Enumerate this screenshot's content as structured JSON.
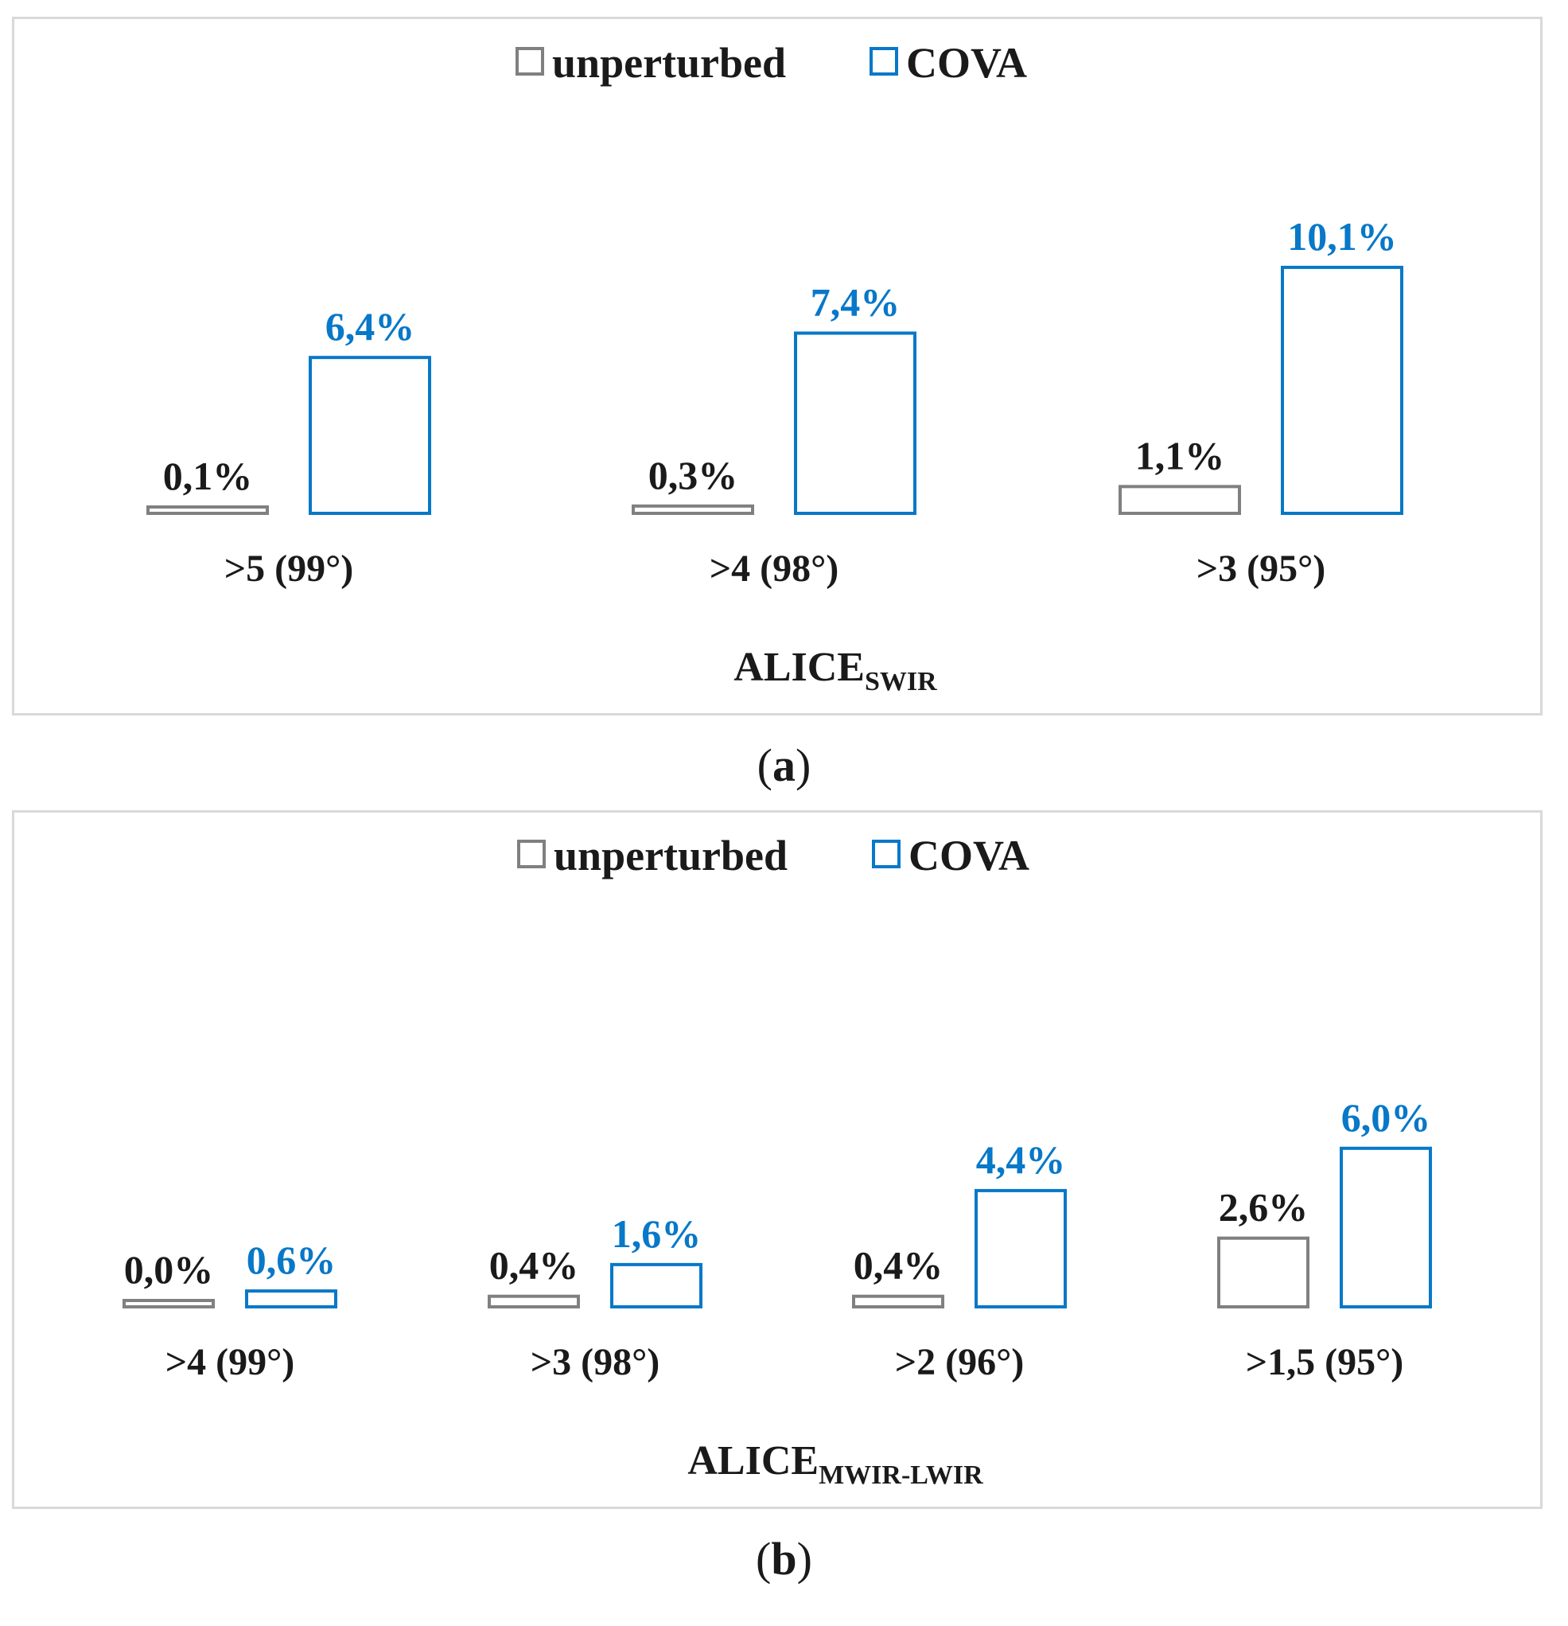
{
  "colors": {
    "unperturbed": "#808080",
    "cova": "#0878c8",
    "text": "#1a1a1a"
  },
  "panels": [
    {
      "label": "a"
    },
    {
      "label": "b"
    }
  ],
  "chart_data": [
    {
      "type": "bar",
      "title_main": "ALICE",
      "title_sub": "SWIR",
      "legend_placement": "top-center",
      "categories": [
        ">5 (99°)",
        ">4 (98°)",
        ">3 (95°)"
      ],
      "series": [
        {
          "name": "unperturbed",
          "values": [
            0.1,
            0.3,
            1.1
          ],
          "labels": [
            "0,1%",
            "0,3%",
            "1,1%"
          ]
        },
        {
          "name": "COVA",
          "values": [
            6.4,
            7.4,
            10.1
          ],
          "labels": [
            "6,4%",
            "7,4%",
            "10,1%"
          ]
        }
      ],
      "unit": "%",
      "grid": false
    },
    {
      "type": "bar",
      "title_main": "ALICE",
      "title_sub": "MWIR-LWIR",
      "legend_placement": "top-center",
      "categories": [
        ">4 (99°)",
        ">3 (98°)",
        ">2 (96°)",
        ">1,5 (95°)"
      ],
      "series": [
        {
          "name": "unperturbed",
          "values": [
            0.0,
            0.4,
            0.4,
            2.6
          ],
          "labels": [
            "0,0%",
            "0,4%",
            "0,4%",
            "2,6%"
          ]
        },
        {
          "name": "COVA",
          "values": [
            0.6,
            1.6,
            4.4,
            6.0
          ],
          "labels": [
            "0,6%",
            "1,6%",
            "4,4%",
            "6,0%"
          ]
        }
      ],
      "unit": "%",
      "grid": false
    }
  ]
}
